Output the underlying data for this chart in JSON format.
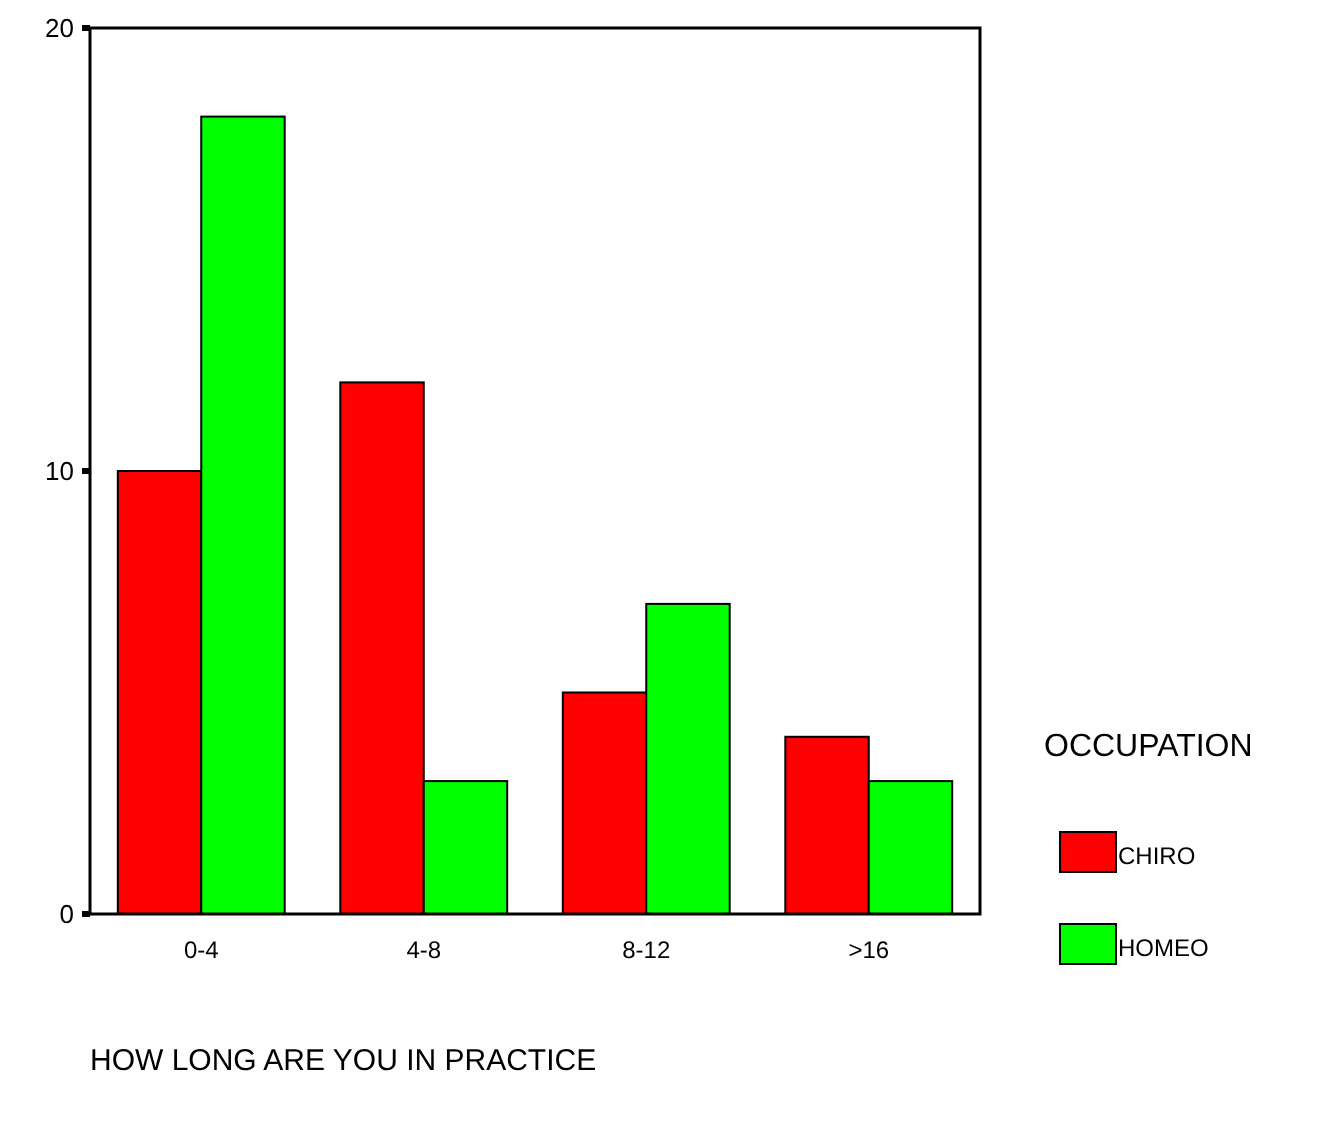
{
  "chart_data": {
    "type": "bar",
    "xlabel": "HOW LONG ARE YOU IN PRACTICE",
    "legend_title": "OCCUPATION",
    "legend": "right",
    "categories": [
      "0-4",
      "4-8",
      "8-12",
      ">16"
    ],
    "series": [
      {
        "name": "CHIRO",
        "color": "#ff0000",
        "values": [
          10,
          12,
          5,
          4
        ]
      },
      {
        "name": "HOMEO",
        "color": "#00ff00",
        "values": [
          18,
          3,
          7,
          3
        ]
      }
    ],
    "ylim": [
      0,
      20
    ],
    "yticks": [
      0,
      10,
      20
    ],
    "grid": false
  }
}
